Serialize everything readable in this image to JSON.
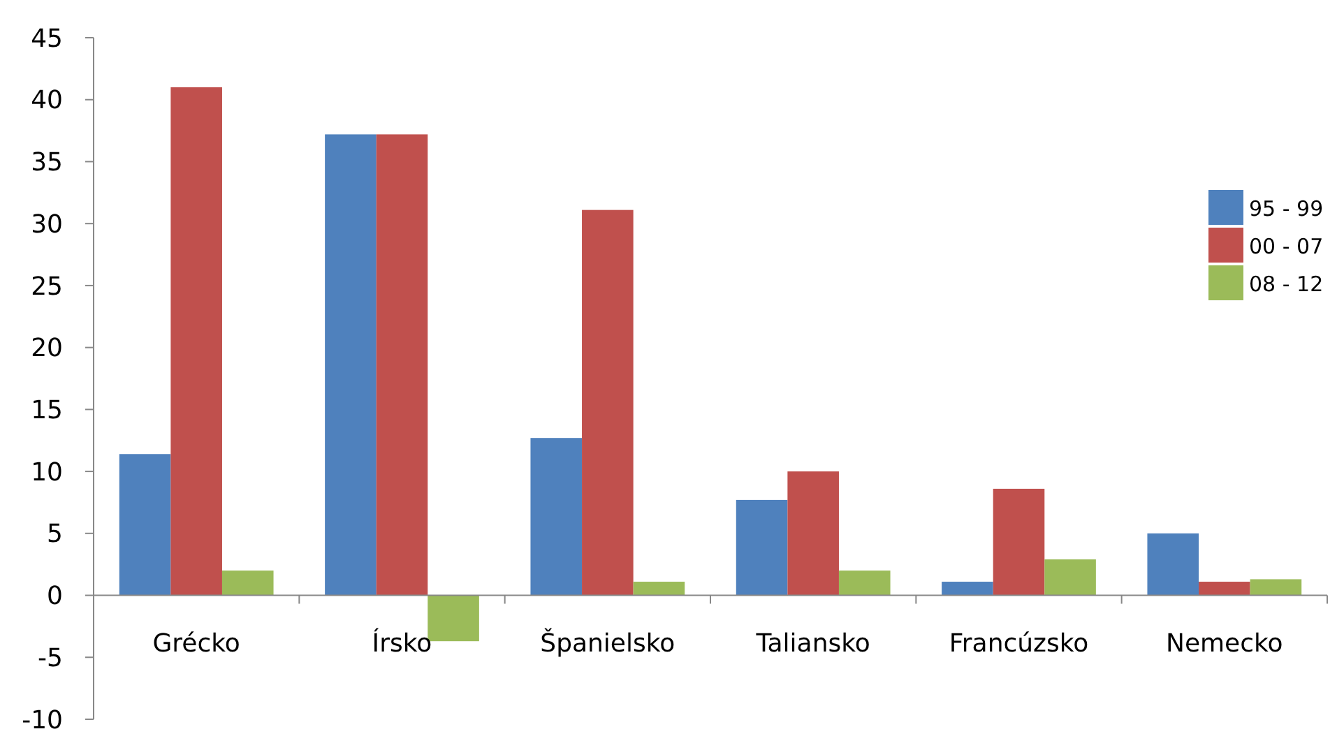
{
  "chart_data": {
    "type": "bar",
    "categories": [
      "Grécko",
      "Írsko",
      "Španielsko",
      "Taliansko",
      "Francúzsko",
      "Nemecko"
    ],
    "series": [
      {
        "name": "95 - 99",
        "color": "#4f81bd",
        "values": [
          11.4,
          37.2,
          12.7,
          7.7,
          1.1,
          5
        ]
      },
      {
        "name": "00 - 07",
        "color": "#c0504d",
        "values": [
          41,
          37.2,
          31.1,
          10,
          8.6,
          1.1
        ]
      },
      {
        "name": "08 - 12",
        "color": "#9bbb59",
        "values": [
          2,
          -3.7,
          1.1,
          2,
          2.9,
          1.3
        ]
      }
    ],
    "ylim": [
      -10,
      45
    ],
    "yticks": [
      -10,
      -5,
      0,
      5,
      10,
      15,
      20,
      25,
      30,
      35,
      40,
      45
    ],
    "grid": false,
    "legend": "right"
  }
}
